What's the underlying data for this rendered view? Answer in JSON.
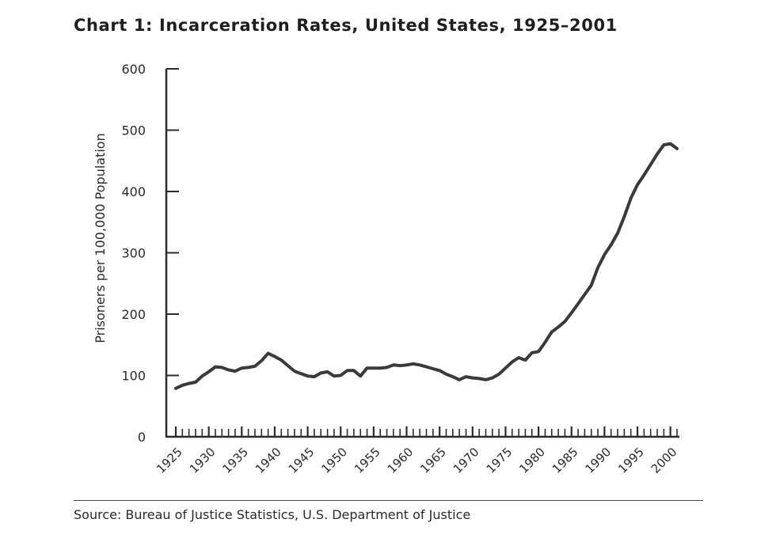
{
  "page": {
    "title": "Chart 1: Incarceration Rates, United States, 1925–2001",
    "source": "Source: Bureau of Justice Statistics, U.S. Department of Justice"
  },
  "chart_data": {
    "type": "line",
    "title": "Chart 1: Incarceration Rates, United States, 1925–2001",
    "xlabel": "",
    "ylabel": "Prisoners per 100,000 Population",
    "xlim": [
      1925,
      2001
    ],
    "ylim": [
      0,
      600
    ],
    "y_ticks": [
      0,
      100,
      200,
      300,
      400,
      500,
      600
    ],
    "x_tick_labels": [
      1925,
      1930,
      1935,
      1940,
      1945,
      1950,
      1955,
      1960,
      1965,
      1970,
      1975,
      1980,
      1985,
      1990,
      1995,
      2000
    ],
    "grid": false,
    "line_color": "#3a3a3a",
    "series": [
      {
        "x": [
          1925,
          1926,
          1927,
          1928,
          1929,
          1930,
          1931,
          1932,
          1933,
          1934,
          1935,
          1936,
          1937,
          1938,
          1939,
          1940,
          1941,
          1942,
          1943,
          1944,
          1945,
          1946,
          1947,
          1948,
          1949,
          1950,
          1951,
          1952,
          1953,
          1954,
          1955,
          1956,
          1957,
          1958,
          1959,
          1960,
          1961,
          1962,
          1963,
          1964,
          1965,
          1966,
          1967,
          1968,
          1969,
          1970,
          1971,
          1972,
          1973,
          1974,
          1975,
          1976,
          1977,
          1978,
          1979,
          1980,
          1981,
          1982,
          1983,
          1984,
          1985,
          1986,
          1987,
          1988,
          1989,
          1990,
          1991,
          1992,
          1993,
          1994,
          1995,
          1996,
          1997,
          1998,
          1999,
          2000,
          2001
        ],
        "y": [
          79,
          84,
          87,
          89,
          99,
          106,
          114,
          113,
          109,
          107,
          112,
          113,
          115,
          124,
          136,
          131,
          125,
          116,
          107,
          103,
          99,
          98,
          104,
          106,
          99,
          100,
          108,
          108,
          99,
          112,
          112,
          112,
          113,
          117,
          116,
          117,
          119,
          117,
          114,
          111,
          108,
          102,
          98,
          93,
          98,
          96,
          95,
          93,
          96,
          102,
          112,
          122,
          129,
          125,
          137,
          139,
          154,
          171,
          179,
          188,
          202,
          217,
          232,
          247,
          276,
          297,
          313,
          332,
          359,
          389,
          411,
          427,
          444,
          461,
          476,
          478,
          470
        ]
      }
    ]
  }
}
